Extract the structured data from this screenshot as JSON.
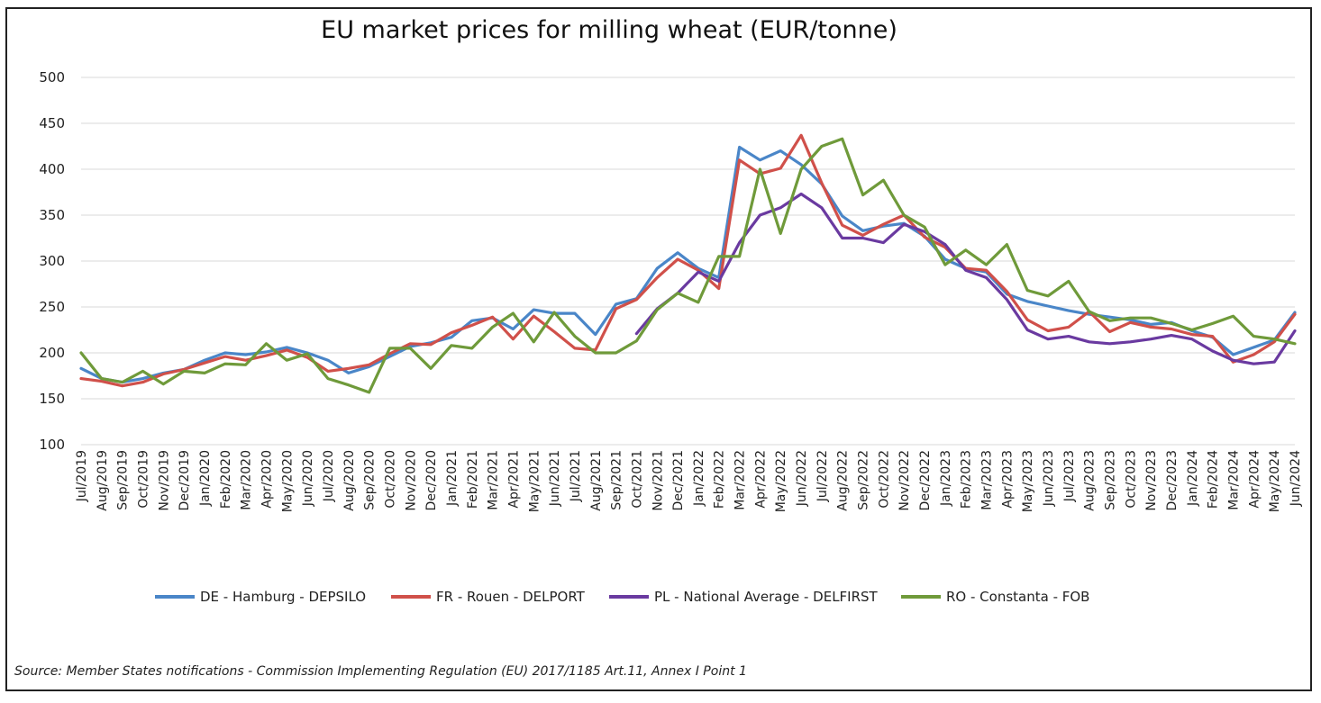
{
  "chart_data": {
    "type": "line",
    "title": "EU market prices for milling wheat (EUR/tonne)",
    "xlabel": "",
    "ylabel": "",
    "ylim": [
      100,
      500
    ],
    "yticks": [
      100,
      150,
      200,
      250,
      300,
      350,
      400,
      450,
      500
    ],
    "grid": "horizontal",
    "legend_position": "bottom",
    "x_tick_labels": [
      "Jul/2019",
      "Aug/2019",
      "Sep/2019",
      "Oct/2019",
      "Nov/2019",
      "Dec/2019",
      "Jan/2020",
      "Feb/2020",
      "Mar/2020",
      "Apr/2020",
      "May/2020",
      "Jun/2020",
      "Jul/2020",
      "Aug/2020",
      "Sep/2020",
      "Oct/2020",
      "Nov/2020",
      "Dec/2020",
      "Jan/2021",
      "Feb/2021",
      "Mar/2021",
      "Apr/2021",
      "May/2021",
      "Jun/2021",
      "Jul/2021",
      "Aug/2021",
      "Sep/2021",
      "Oct/2021",
      "Nov/2021",
      "Dec/2021",
      "Jan/2022",
      "Feb/2022",
      "Mar/2022",
      "Apr/2022",
      "May/2022",
      "Jun/2022",
      "Jul/2022",
      "Aug/2022",
      "Sep/2022",
      "Oct/2022",
      "Nov/2022",
      "Dec/2022",
      "Jan/2023",
      "Feb/2023",
      "Mar/2023",
      "Apr/2023",
      "May/2023",
      "Jun/2023",
      "Jul/2023",
      "Aug/2023",
      "Sep/2023",
      "Oct/2023",
      "Nov/2023",
      "Dec/2023",
      "Jan/2024",
      "Feb/2024",
      "Mar/2024",
      "Apr/2024",
      "May/2024",
      "Jun/2024"
    ],
    "x_months": [
      "2019-07",
      "2019-08",
      "2019-09",
      "2019-10",
      "2019-11",
      "2019-12",
      "2020-01",
      "2020-02",
      "2020-03",
      "2020-04",
      "2020-05",
      "2020-06",
      "2020-07",
      "2020-08",
      "2020-09",
      "2020-10",
      "2020-11",
      "2020-12",
      "2021-01",
      "2021-02",
      "2021-03",
      "2021-04",
      "2021-05",
      "2021-06",
      "2021-07",
      "2021-08",
      "2021-09",
      "2021-10",
      "2021-11",
      "2021-12",
      "2022-01",
      "2022-02",
      "2022-03",
      "2022-04",
      "2022-05",
      "2022-06",
      "2022-07",
      "2022-08",
      "2022-09",
      "2022-10",
      "2022-11",
      "2022-12",
      "2023-01",
      "2023-02",
      "2023-03",
      "2023-04",
      "2023-05",
      "2023-06",
      "2023-07",
      "2023-08",
      "2023-09",
      "2023-10",
      "2023-11",
      "2023-12",
      "2024-01",
      "2024-02",
      "2024-03",
      "2024-04",
      "2024-05",
      "2024-06"
    ],
    "series": [
      {
        "name": "DE - Hamburg - DEPSILO",
        "color": "#4a86c8",
        "points": [
          [
            "2019-07",
            183
          ],
          [
            "2019-08",
            172
          ],
          [
            "2019-09",
            168
          ],
          [
            "2019-10",
            172
          ],
          [
            "2019-11",
            178
          ],
          [
            "2019-12",
            182
          ],
          [
            "2020-01",
            192
          ],
          [
            "2020-02",
            200
          ],
          [
            "2020-03",
            198
          ],
          [
            "2020-04",
            201
          ],
          [
            "2020-05",
            206
          ],
          [
            "2020-06",
            200
          ],
          [
            "2020-07",
            192
          ],
          [
            "2020-08",
            178
          ],
          [
            "2020-09",
            185
          ],
          [
            "2020-10",
            196
          ],
          [
            "2020-11",
            207
          ],
          [
            "2020-12",
            211
          ],
          [
            "2021-01",
            217
          ],
          [
            "2021-02",
            235
          ],
          [
            "2021-03",
            238
          ],
          [
            "2021-04",
            226
          ],
          [
            "2021-05",
            247
          ],
          [
            "2021-06",
            243
          ],
          [
            "2021-07",
            243
          ],
          [
            "2021-08",
            220
          ],
          [
            "2021-09",
            253
          ],
          [
            "2021-10",
            259
          ],
          [
            "2021-11",
            292
          ],
          [
            "2021-12",
            309
          ],
          [
            "2022-01",
            292
          ],
          [
            "2022-02",
            282
          ],
          [
            "2022-03",
            424
          ],
          [
            "2022-04",
            410
          ],
          [
            "2022-05",
            420
          ],
          [
            "2022-06",
            405
          ],
          [
            "2022-07",
            384
          ],
          [
            "2022-08",
            349
          ],
          [
            "2022-09",
            333
          ],
          [
            "2022-10",
            338
          ],
          [
            "2022-11",
            341
          ],
          [
            "2022-12",
            327
          ],
          [
            "2023-01",
            302
          ],
          [
            "2023-02",
            292
          ],
          [
            "2023-03",
            288
          ],
          [
            "2023-04",
            264
          ],
          [
            "2023-05",
            256
          ],
          [
            "2023-06",
            251
          ],
          [
            "2023-07",
            246
          ],
          [
            "2023-08",
            242
          ],
          [
            "2023-09",
            239
          ],
          [
            "2023-10",
            236
          ],
          [
            "2023-11",
            231
          ],
          [
            "2023-12",
            233
          ],
          [
            "2024-01",
            224
          ],
          [
            "2024-02",
            217
          ],
          [
            "2024-03",
            198
          ],
          [
            "2024-04",
            206
          ],
          [
            "2024-05",
            214
          ],
          [
            "2024-06",
            244
          ]
        ]
      },
      {
        "name": "FR - Rouen - DELPORT",
        "color": "#d0504a",
        "points": [
          [
            "2019-07",
            172
          ],
          [
            "2019-08",
            169
          ],
          [
            "2019-09",
            164
          ],
          [
            "2019-10",
            168
          ],
          [
            "2019-11",
            177
          ],
          [
            "2019-12",
            182
          ],
          [
            "2020-01",
            189
          ],
          [
            "2020-02",
            196
          ],
          [
            "2020-03",
            192
          ],
          [
            "2020-04",
            197
          ],
          [
            "2020-05",
            203
          ],
          [
            "2020-06",
            195
          ],
          [
            "2020-07",
            180
          ],
          [
            "2020-08",
            183
          ],
          [
            "2020-09",
            187
          ],
          [
            "2020-10",
            199
          ],
          [
            "2020-11",
            210
          ],
          [
            "2020-12",
            209
          ],
          [
            "2021-01",
            222
          ],
          [
            "2021-02",
            230
          ],
          [
            "2021-03",
            239
          ],
          [
            "2021-04",
            215
          ],
          [
            "2021-05",
            240
          ],
          [
            "2021-06",
            223
          ],
          [
            "2021-07",
            205
          ],
          [
            "2021-08",
            203
          ],
          [
            "2021-09",
            248
          ],
          [
            "2021-10",
            258
          ],
          [
            "2021-11",
            282
          ],
          [
            "2021-12",
            302
          ],
          [
            "2022-01",
            290
          ],
          [
            "2022-02",
            270
          ],
          [
            "2022-03",
            410
          ],
          [
            "2022-04",
            395
          ],
          [
            "2022-05",
            401
          ],
          [
            "2022-06",
            437
          ],
          [
            "2022-07",
            385
          ],
          [
            "2022-08",
            339
          ],
          [
            "2022-09",
            328
          ],
          [
            "2022-10",
            340
          ],
          [
            "2022-11",
            350
          ],
          [
            "2022-12",
            326
          ],
          [
            "2023-01",
            315
          ],
          [
            "2023-02",
            292
          ],
          [
            "2023-03",
            290
          ],
          [
            "2023-04",
            267
          ],
          [
            "2023-05",
            236
          ],
          [
            "2023-06",
            224
          ],
          [
            "2023-07",
            228
          ],
          [
            "2023-08",
            245
          ],
          [
            "2023-09",
            223
          ],
          [
            "2023-10",
            233
          ],
          [
            "2023-11",
            228
          ],
          [
            "2023-12",
            226
          ],
          [
            "2024-01",
            220
          ],
          [
            "2024-02",
            218
          ],
          [
            "2024-03",
            190
          ],
          [
            "2024-04",
            198
          ],
          [
            "2024-05",
            212
          ],
          [
            "2024-06",
            242
          ]
        ]
      },
      {
        "name": "PL - National Average - DELFIRST",
        "color": "#6a3aa0",
        "points": [
          [
            "2021-10",
            221
          ],
          [
            "2021-11",
            248
          ],
          [
            "2021-12",
            265
          ],
          [
            "2022-01",
            288
          ],
          [
            "2022-02",
            278
          ],
          [
            "2022-03",
            320
          ],
          [
            "2022-04",
            350
          ],
          [
            "2022-05",
            358
          ],
          [
            "2022-06",
            373
          ],
          [
            "2022-07",
            358
          ],
          [
            "2022-08",
            325
          ],
          [
            "2022-09",
            325
          ],
          [
            "2022-10",
            320
          ],
          [
            "2022-11",
            340
          ],
          [
            "2022-12",
            332
          ],
          [
            "2023-01",
            318
          ],
          [
            "2023-02",
            290
          ],
          [
            "2023-03",
            282
          ],
          [
            "2023-04",
            258
          ],
          [
            "2023-05",
            225
          ],
          [
            "2023-06",
            215
          ],
          [
            "2023-07",
            218
          ],
          [
            "2023-08",
            212
          ],
          [
            "2023-09",
            210
          ],
          [
            "2023-10",
            212
          ],
          [
            "2023-11",
            215
          ],
          [
            "2023-12",
            219
          ],
          [
            "2024-01",
            215
          ],
          [
            "2024-02",
            202
          ],
          [
            "2024-03",
            192
          ],
          [
            "2024-04",
            188
          ],
          [
            "2024-05",
            190
          ],
          [
            "2024-06",
            224
          ]
        ]
      },
      {
        "name": "RO - Constanta - FOB",
        "color": "#6f9a3a",
        "points": [
          [
            "2019-07",
            200
          ],
          [
            "2019-08",
            172
          ],
          [
            "2019-09",
            168
          ],
          [
            "2019-10",
            180
          ],
          [
            "2019-11",
            166
          ],
          [
            "2019-12",
            180
          ],
          [
            "2020-01",
            178
          ],
          [
            "2020-02",
            188
          ],
          [
            "2020-03",
            187
          ],
          [
            "2020-04",
            210
          ],
          [
            "2020-05",
            192
          ],
          [
            "2020-06",
            199
          ],
          [
            "2020-07",
            172
          ],
          [
            "2020-08",
            165
          ],
          [
            "2020-09",
            157
          ],
          [
            "2020-10",
            205
          ],
          [
            "2020-11",
            205
          ],
          [
            "2020-12",
            183
          ],
          [
            "2021-01",
            208
          ],
          [
            "2021-02",
            205
          ],
          [
            "2021-03",
            228
          ],
          [
            "2021-04",
            243
          ],
          [
            "2021-05",
            212
          ],
          [
            "2021-06",
            244
          ],
          [
            "2021-07",
            218
          ],
          [
            "2021-08",
            200
          ],
          [
            "2021-09",
            200
          ],
          [
            "2021-10",
            213
          ],
          [
            "2021-11",
            247
          ],
          [
            "2021-12",
            265
          ],
          [
            "2022-01",
            255
          ],
          [
            "2022-02",
            305
          ],
          [
            "2022-03",
            305
          ],
          [
            "2022-04",
            400
          ],
          [
            "2022-05",
            330
          ],
          [
            "2022-06",
            400
          ],
          [
            "2022-07",
            425
          ],
          [
            "2022-08",
            433
          ],
          [
            "2022-09",
            372
          ],
          [
            "2022-10",
            388
          ],
          [
            "2022-11",
            350
          ],
          [
            "2022-12",
            337
          ],
          [
            "2023-01",
            296
          ],
          [
            "2023-02",
            312
          ],
          [
            "2023-03",
            296
          ],
          [
            "2023-04",
            318
          ],
          [
            "2023-05",
            268
          ],
          [
            "2023-06",
            262
          ],
          [
            "2023-07",
            278
          ],
          [
            "2023-08",
            245
          ],
          [
            "2023-09",
            235
          ],
          [
            "2023-10",
            238
          ],
          [
            "2023-11",
            238
          ],
          [
            "2023-12",
            232
          ],
          [
            "2024-01",
            225
          ],
          [
            "2024-02",
            232
          ],
          [
            "2024-03",
            240
          ],
          [
            "2024-04",
            218
          ],
          [
            "2024-05",
            215
          ],
          [
            "2024-06",
            210
          ]
        ]
      }
    ],
    "source": "Source: Member States notifications - Commission Implementing Regulation (EU) 2017/1185 Art.11, Annex I Point 1"
  }
}
